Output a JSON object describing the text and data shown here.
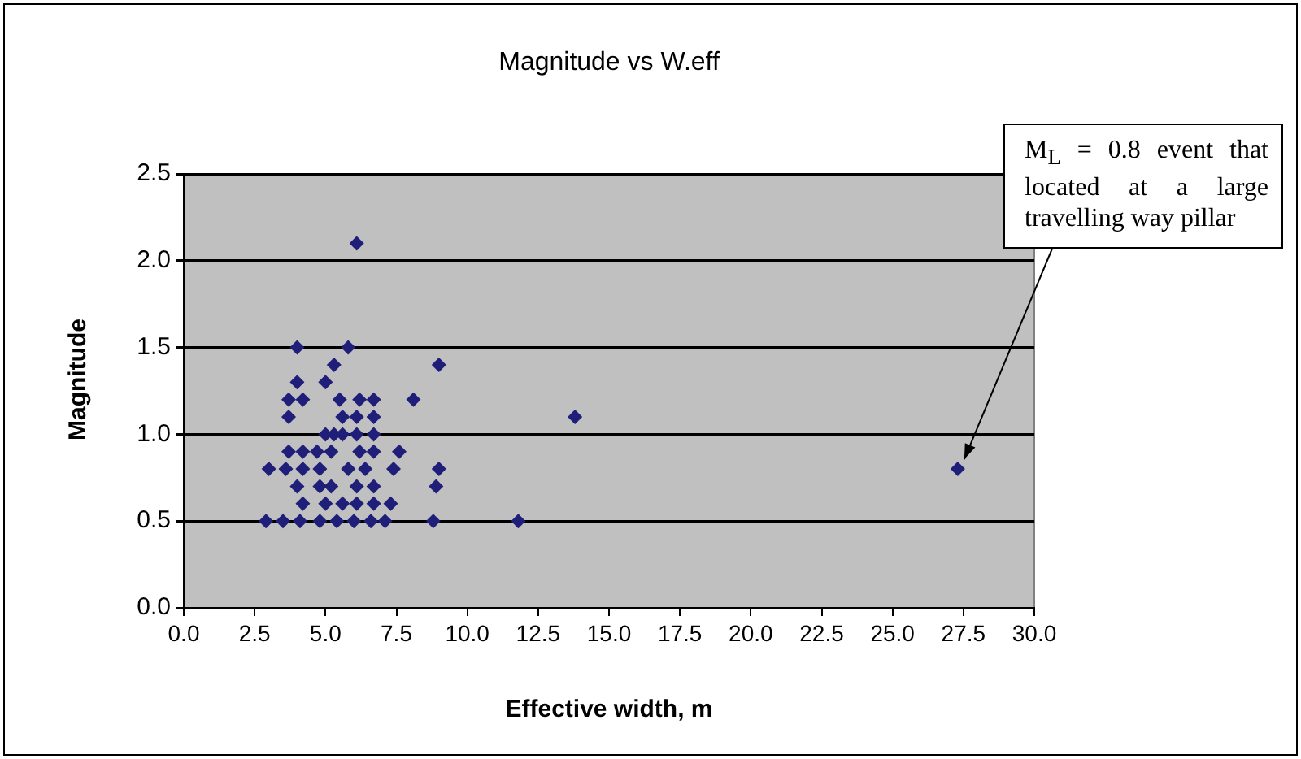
{
  "chart_data": {
    "type": "scatter",
    "title": "Magnitude vs W.eff",
    "xlabel": "Effective width, m",
    "ylabel": "Magnitude",
    "marker": "diamond",
    "grid": "y",
    "color": "#1f1f7a",
    "x": [
      6.1,
      4.0,
      5.8,
      5.3,
      9.0,
      5.0,
      4.0,
      3.7,
      4.2,
      5.5,
      6.2,
      6.7,
      8.1,
      3.7,
      5.6,
      6.1,
      6.7,
      5.0,
      5.3,
      5.6,
      6.1,
      6.7,
      3.7,
      4.2,
      4.7,
      5.2,
      6.2,
      6.7,
      7.6,
      3.0,
      3.6,
      4.2,
      4.8,
      5.8,
      6.4,
      7.4,
      9.0,
      4.0,
      4.8,
      5.2,
      6.1,
      6.7,
      8.9,
      4.2,
      5.0,
      5.6,
      6.1,
      6.7,
      7.3,
      2.9,
      3.5,
      4.1,
      4.8,
      5.4,
      6.0,
      6.6,
      7.1,
      8.8,
      13.8,
      11.8,
      27.3
    ],
    "values": [
      2.1,
      1.5,
      1.5,
      1.4,
      1.4,
      1.3,
      1.3,
      1.2,
      1.2,
      1.2,
      1.2,
      1.2,
      1.2,
      1.1,
      1.1,
      1.1,
      1.1,
      1.0,
      1.0,
      1.0,
      1.0,
      1.0,
      0.9,
      0.9,
      0.9,
      0.9,
      0.9,
      0.9,
      0.9,
      0.8,
      0.8,
      0.8,
      0.8,
      0.8,
      0.8,
      0.8,
      0.8,
      0.7,
      0.7,
      0.7,
      0.7,
      0.7,
      0.7,
      0.6,
      0.6,
      0.6,
      0.6,
      0.6,
      0.6,
      0.5,
      0.5,
      0.5,
      0.5,
      0.5,
      0.5,
      0.5,
      0.5,
      0.5,
      1.1,
      0.5,
      0.8
    ],
    "xlim": [
      0,
      30
    ],
    "ylim": [
      0,
      2.5
    ],
    "xticks": [
      {
        "value": 0,
        "label": "0.0"
      },
      {
        "value": 2.5,
        "label": "2.5"
      },
      {
        "value": 5,
        "label": "5.0"
      },
      {
        "value": 7.5,
        "label": "7.5"
      },
      {
        "value": 10,
        "label": "10.0"
      },
      {
        "value": 12.5,
        "label": "12.5"
      },
      {
        "value": 15,
        "label": "15.0"
      },
      {
        "value": 17.5,
        "label": "17.5"
      },
      {
        "value": 20,
        "label": "20.0"
      },
      {
        "value": 22.5,
        "label": "22.5"
      },
      {
        "value": 25,
        "label": "25.0"
      },
      {
        "value": 27.5,
        "label": "27.5"
      },
      {
        "value": 30,
        "label": "30.0"
      }
    ],
    "yticks": [
      {
        "value": 0,
        "label": "0.0"
      },
      {
        "value": 0.5,
        "label": "0.5"
      },
      {
        "value": 1,
        "label": "1.0"
      },
      {
        "value": 1.5,
        "label": "1.5"
      },
      {
        "value": 2,
        "label": "2.0"
      },
      {
        "value": 2.5,
        "label": "2.5"
      }
    ],
    "annotations": [
      {
        "text": "M$_{L}$ = 0.8 event that located at a large travelling way pillar",
        "x": 27.3,
        "y": 0.8
      }
    ]
  }
}
